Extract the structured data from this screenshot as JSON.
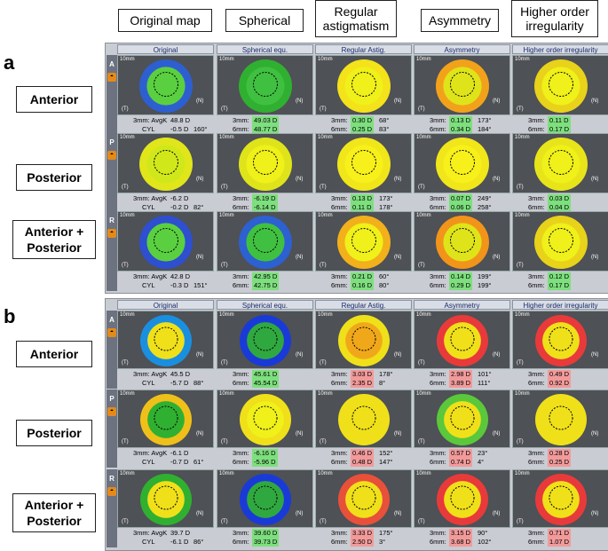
{
  "column_headers": [
    "Original map",
    "Spherical",
    "Regular astigmatism",
    "Asymmetry",
    "Higher order irregularity"
  ],
  "panel_a": {
    "letter": "a",
    "col_titles": [
      "Original",
      "Spherical equ.",
      "Regular Astig.",
      "Asymmetry",
      "Higher order irregularity"
    ],
    "rows": [
      {
        "label": "Anterior",
        "sidebar_letter": "A",
        "orig": {
          "l1_lbl": "3mm: AvgK",
          "l1_val": "48.8 D",
          "l1_deg": "",
          "l2_lbl": "CYL",
          "l2_val": "-0.5 D",
          "l2_deg": "160°"
        },
        "sph": {
          "l1_lbl": "3mm:",
          "l1_val": "49.03 D",
          "l2_lbl": "6mm:",
          "l2_val": "48.77 D"
        },
        "reg": {
          "l1_lbl": "3mm:",
          "l1_val": "0.30 D",
          "l1_deg": "68°",
          "l2_lbl": "6mm:",
          "l2_val": "0.25 D",
          "l2_deg": "83°"
        },
        "asym": {
          "l1_lbl": "3mm:",
          "l1_val": "0.13 D",
          "l1_deg": "173°",
          "l2_lbl": "6mm:",
          "l2_val": "0.34 D",
          "l2_deg": "184°"
        },
        "hoi": {
          "l1_lbl": "3mm:",
          "l1_val": "0.11 D",
          "l2_lbl": "6mm:",
          "l2_val": "0.17 D"
        }
      },
      {
        "label": "Posterior",
        "sidebar_letter": "P",
        "orig": {
          "l1_lbl": "3mm: AvgK",
          "l1_val": "-6.2 D",
          "l1_deg": "",
          "l2_lbl": "CYL",
          "l2_val": "-0.2 D",
          "l2_deg": "82°"
        },
        "sph": {
          "l1_lbl": "3mm:",
          "l1_val": "-6.19 D",
          "l2_lbl": "6mm:",
          "l2_val": "-6.14 D"
        },
        "reg": {
          "l1_lbl": "3mm:",
          "l1_val": "0.13 D",
          "l1_deg": "173°",
          "l2_lbl": "6mm:",
          "l2_val": "0.11 D",
          "l2_deg": "178°"
        },
        "asym": {
          "l1_lbl": "3mm:",
          "l1_val": "0.07 D",
          "l1_deg": "249°",
          "l2_lbl": "6mm:",
          "l2_val": "0.06 D",
          "l2_deg": "258°"
        },
        "hoi": {
          "l1_lbl": "3mm:",
          "l1_val": "0.03 D",
          "l2_lbl": "6mm:",
          "l2_val": "0.04 D"
        }
      },
      {
        "label": "Anterior + Posterior",
        "sidebar_letter": "R",
        "orig": {
          "l1_lbl": "3mm: AvgK",
          "l1_val": "42.8 D",
          "l1_deg": "",
          "l2_lbl": "CYL",
          "l2_val": "-0.3 D",
          "l2_deg": "151°"
        },
        "sph": {
          "l1_lbl": "3mm:",
          "l1_val": "42.95 D",
          "l2_lbl": "6mm:",
          "l2_val": "42.75 D"
        },
        "reg": {
          "l1_lbl": "3mm:",
          "l1_val": "0.21 D",
          "l1_deg": "60°",
          "l2_lbl": "6mm:",
          "l2_val": "0.16 D",
          "l2_deg": "80°"
        },
        "asym": {
          "l1_lbl": "3mm:",
          "l1_val": "0.14 D",
          "l1_deg": "199°",
          "l2_lbl": "6mm:",
          "l2_val": "0.29 D",
          "l2_deg": "199°"
        },
        "hoi": {
          "l1_lbl": "3mm:",
          "l1_val": "0.12 D",
          "l2_lbl": "6mm:",
          "l2_val": "0.17 D"
        }
      }
    ]
  },
  "panel_b": {
    "letter": "b",
    "col_titles": [
      "Original",
      "Spherical equ.",
      "Regular Astig.",
      "Asymmetry",
      "Higher order irregularity"
    ],
    "rows": [
      {
        "label": "Anterior",
        "sidebar_letter": "A",
        "orig": {
          "l1_lbl": "3mm: AvgK",
          "l1_val": "45.5 D",
          "l1_deg": "",
          "l2_lbl": "CYL",
          "l2_val": "-5.7 D",
          "l2_deg": "88°"
        },
        "sph": {
          "l1_lbl": "3mm:",
          "l1_val": "45.61 D",
          "l2_lbl": "6mm:",
          "l2_val": "45.54 D"
        },
        "reg": {
          "l1_lbl": "3mm:",
          "l1_val": "3.03 D",
          "l1_deg": "178°",
          "l2_lbl": "6mm:",
          "l2_val": "2.35 D",
          "l2_deg": "8°"
        },
        "asym": {
          "l1_lbl": "3mm:",
          "l1_val": "2.98 D",
          "l1_deg": "101°",
          "l2_lbl": "6mm:",
          "l2_val": "3.89 D",
          "l2_deg": "111°"
        },
        "hoi": {
          "l1_lbl": "3mm:",
          "l1_val": "0.49 D",
          "l2_lbl": "6mm:",
          "l2_val": "0.92 D"
        }
      },
      {
        "label": "Posterior",
        "sidebar_letter": "P",
        "orig": {
          "l1_lbl": "3mm: AvgK",
          "l1_val": "-6.1 D",
          "l1_deg": "",
          "l2_lbl": "CYL",
          "l2_val": "-0.7 D",
          "l2_deg": "61°"
        },
        "sph": {
          "l1_lbl": "3mm:",
          "l1_val": "-6.16 D",
          "l2_lbl": "6mm:",
          "l2_val": "-5.96 D"
        },
        "reg": {
          "l1_lbl": "3mm:",
          "l1_val": "0.46 D",
          "l1_deg": "152°",
          "l2_lbl": "6mm:",
          "l2_val": "0.48 D",
          "l2_deg": "147°"
        },
        "asym": {
          "l1_lbl": "3mm:",
          "l1_val": "0.57 D",
          "l1_deg": "23°",
          "l2_lbl": "6mm:",
          "l2_val": "0.74 D",
          "l2_deg": "4°"
        },
        "hoi": {
          "l1_lbl": "3mm:",
          "l1_val": "0.28 D",
          "l2_lbl": "6mm:",
          "l2_val": "0.25 D"
        }
      },
      {
        "label": "Anterior + Posterior",
        "sidebar_letter": "R",
        "orig": {
          "l1_lbl": "3mm: AvgK",
          "l1_val": "39.7 D",
          "l1_deg": "",
          "l2_lbl": "CYL",
          "l2_val": "-6.1 D",
          "l2_deg": "86°"
        },
        "sph": {
          "l1_lbl": "3mm:",
          "l1_val": "39.60 D",
          "l2_lbl": "6mm:",
          "l2_val": "39.73 D"
        },
        "reg": {
          "l1_lbl": "3mm:",
          "l1_val": "3.33 D",
          "l1_deg": "175°",
          "l2_lbl": "6mm:",
          "l2_val": "2.50 D",
          "l2_deg": "3°"
        },
        "asym": {
          "l1_lbl": "3mm:",
          "l1_val": "3.15 D",
          "l1_deg": "90°",
          "l2_lbl": "6mm:",
          "l2_val": "3.68 D",
          "l2_deg": "102°"
        },
        "hoi": {
          "l1_lbl": "3mm:",
          "l1_val": "0.71 D",
          "l2_lbl": "6mm:",
          "l2_val": "1.07 D"
        }
      }
    ]
  },
  "map_labels": {
    "scale": "10mm",
    "temporal": "(T)",
    "nasal": "(N)"
  },
  "colors": {
    "green_highlight": "#7ddf7d",
    "red_highlight": "#f29a9a",
    "sidebar_icon": "#e48a1a",
    "panel_bg": "#c9ccd3"
  }
}
